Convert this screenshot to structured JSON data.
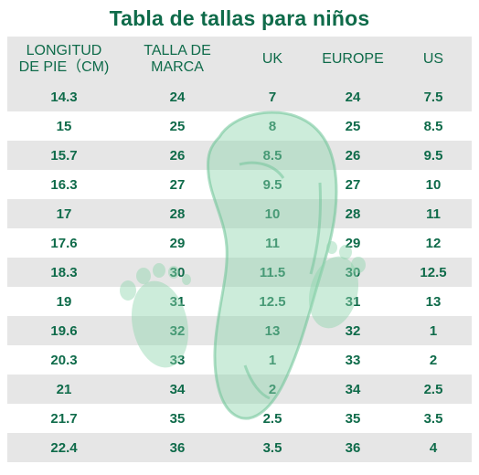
{
  "title": "Tabla de tallas para niños",
  "headers": {
    "col0_line1": "LONGITUD",
    "col0_line2": "DE PIE（CM)",
    "col1_line1": "TALLA DE",
    "col1_line2": "MARCA",
    "col2": "UK",
    "col3": "EUROPE",
    "col4": "US"
  },
  "rows": [
    [
      "14.3",
      "24",
      "7",
      "24",
      "7.5"
    ],
    [
      "15",
      "25",
      "8",
      "25",
      "8.5"
    ],
    [
      "15.7",
      "26",
      "8.5",
      "26",
      "9.5"
    ],
    [
      "16.3",
      "27",
      "9.5",
      "27",
      "10"
    ],
    [
      "17",
      "28",
      "10",
      "28",
      "11"
    ],
    [
      "17.6",
      "29",
      "11",
      "29",
      "12"
    ],
    [
      "18.3",
      "30",
      "11.5",
      "30",
      "12.5"
    ],
    [
      "19",
      "31",
      "12.5",
      "31",
      "13"
    ],
    [
      "19.6",
      "32",
      "13",
      "32",
      "1"
    ],
    [
      "20.3",
      "33",
      "1",
      "33",
      "2"
    ],
    [
      "21",
      "34",
      "2",
      "34",
      "2.5"
    ],
    [
      "21.7",
      "35",
      "2.5",
      "35",
      "3.5"
    ],
    [
      "22.4",
      "36",
      "3.5",
      "36",
      "4"
    ]
  ],
  "colors": {
    "text": "#0f6b4a",
    "stripe": "#e6e6e6",
    "watermark": "#8fd4ad"
  },
  "watermark_icon": "footprint-shoe-icon"
}
